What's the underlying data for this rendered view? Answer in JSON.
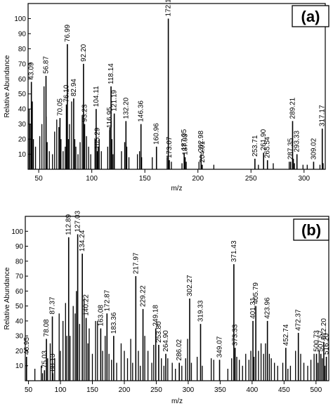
{
  "chart_data": [
    {
      "type": "bar",
      "panel_label": "(a)",
      "xlabel": "m/z",
      "ylabel": "Relative Abundance",
      "xlim": [
        40,
        320
      ],
      "ylim": [
        0,
        110
      ],
      "xticks": [
        "50",
        "100",
        "150",
        "200",
        "250",
        "300"
      ],
      "yticks": [
        "10",
        "20",
        "30",
        "40",
        "50",
        "60",
        "70",
        "80",
        "90",
        "100"
      ],
      "peaks": [
        {
          "x": 43.09,
          "y": 58,
          "label": "43.09"
        },
        {
          "x": 56.87,
          "y": 62,
          "label": "56.87"
        },
        {
          "x": 70.05,
          "y": 34,
          "label": "70.05"
        },
        {
          "x": 76.1,
          "y": 43,
          "label": "76.10"
        },
        {
          "x": 76.99,
          "y": 83,
          "label": "76.99"
        },
        {
          "x": 82.94,
          "y": 47,
          "label": "82.94"
        },
        {
          "x": 92.2,
          "y": 70,
          "label": "92.20"
        },
        {
          "x": 93.23,
          "y": 30,
          "label": "93.23"
        },
        {
          "x": 104.11,
          "y": 40,
          "label": "104.11"
        },
        {
          "x": 105.29,
          "y": 12,
          "label": "105.29"
        },
        {
          "x": 116.95,
          "y": 26,
          "label": "116.95"
        },
        {
          "x": 118.14,
          "y": 55,
          "label": "118.14"
        },
        {
          "x": 121.19,
          "y": 37,
          "label": "121.19"
        },
        {
          "x": 132.2,
          "y": 32,
          "label": "132.20"
        },
        {
          "x": 146.36,
          "y": 30,
          "label": "146.36"
        },
        {
          "x": 160.96,
          "y": 15,
          "label": "160.96"
        },
        {
          "x": 172.12,
          "y": 100,
          "label": "172.12"
        },
        {
          "x": 173.07,
          "y": 6,
          "label": "173.07"
        },
        {
          "x": 187.05,
          "y": 11,
          "label": "187.05"
        },
        {
          "x": 187.93,
          "y": 8,
          "label": "187.93"
        },
        {
          "x": 202.98,
          "y": 10,
          "label": "202.98"
        },
        {
          "x": 204.01,
          "y": 3,
          "label": "204.01"
        },
        {
          "x": 253.71,
          "y": 7,
          "label": "253.71"
        },
        {
          "x": 261.9,
          "y": 11,
          "label": "261.90"
        },
        {
          "x": 265.54,
          "y": 6,
          "label": "265.54"
        },
        {
          "x": 287.35,
          "y": 5,
          "label": "287.35"
        },
        {
          "x": 289.21,
          "y": 32,
          "label": "289.21"
        },
        {
          "x": 293.33,
          "y": 10,
          "label": "293.33"
        },
        {
          "x": 309.02,
          "y": 5,
          "label": "309.02"
        },
        {
          "x": 317.17,
          "y": 27,
          "label": "317.17"
        }
      ],
      "minor_peaks": [
        {
          "x": 41,
          "y": 40
        },
        {
          "x": 42,
          "y": 30
        },
        {
          "x": 44,
          "y": 45
        },
        {
          "x": 45,
          "y": 20
        },
        {
          "x": 47,
          "y": 15
        },
        {
          "x": 51,
          "y": 22
        },
        {
          "x": 53,
          "y": 30
        },
        {
          "x": 55,
          "y": 55
        },
        {
          "x": 57,
          "y": 35
        },
        {
          "x": 58,
          "y": 18
        },
        {
          "x": 60,
          "y": 12
        },
        {
          "x": 63,
          "y": 10
        },
        {
          "x": 65,
          "y": 25
        },
        {
          "x": 67,
          "y": 33
        },
        {
          "x": 69,
          "y": 28
        },
        {
          "x": 71,
          "y": 20
        },
        {
          "x": 73,
          "y": 12
        },
        {
          "x": 75,
          "y": 15
        },
        {
          "x": 78,
          "y": 20
        },
        {
          "x": 79,
          "y": 30
        },
        {
          "x": 81,
          "y": 45
        },
        {
          "x": 84,
          "y": 20
        },
        {
          "x": 85,
          "y": 15
        },
        {
          "x": 87,
          "y": 10
        },
        {
          "x": 89,
          "y": 18
        },
        {
          "x": 91,
          "y": 36
        },
        {
          "x": 95,
          "y": 22
        },
        {
          "x": 97,
          "y": 15
        },
        {
          "x": 99,
          "y": 10
        },
        {
          "x": 103,
          "y": 20
        },
        {
          "x": 106,
          "y": 15
        },
        {
          "x": 107,
          "y": 20
        },
        {
          "x": 109,
          "y": 12
        },
        {
          "x": 115,
          "y": 15
        },
        {
          "x": 117,
          "y": 28
        },
        {
          "x": 119,
          "y": 20
        },
        {
          "x": 120,
          "y": 10
        },
        {
          "x": 128,
          "y": 12
        },
        {
          "x": 131,
          "y": 18
        },
        {
          "x": 133,
          "y": 15
        },
        {
          "x": 135,
          "y": 8
        },
        {
          "x": 143,
          "y": 10
        },
        {
          "x": 145,
          "y": 12
        },
        {
          "x": 147,
          "y": 8
        },
        {
          "x": 157,
          "y": 8
        },
        {
          "x": 171,
          "y": 8
        },
        {
          "x": 175,
          "y": 5
        },
        {
          "x": 185,
          "y": 4
        },
        {
          "x": 189,
          "y": 5
        },
        {
          "x": 201,
          "y": 5
        },
        {
          "x": 215,
          "y": 3
        },
        {
          "x": 257,
          "y": 3
        },
        {
          "x": 271,
          "y": 4
        },
        {
          "x": 286,
          "y": 5
        },
        {
          "x": 290,
          "y": 7
        },
        {
          "x": 291,
          "y": 4
        },
        {
          "x": 299,
          "y": 3
        },
        {
          "x": 303,
          "y": 3
        },
        {
          "x": 315,
          "y": 3
        },
        {
          "x": 318,
          "y": 4
        }
      ]
    },
    {
      "type": "bar",
      "panel_label": "(b)",
      "xlabel": "m/z",
      "ylabel": "Relative Abundance",
      "xlim": [
        45,
        520
      ],
      "ylim": [
        0,
        110
      ],
      "xticks": [
        "50",
        "100",
        "150",
        "200",
        "250",
        "300",
        "350",
        "400",
        "450",
        "500"
      ],
      "yticks": [
        "10",
        "20",
        "30",
        "40",
        "50",
        "60",
        "70",
        "80",
        "90",
        "100"
      ],
      "peaks": [
        {
          "x": 46.95,
          "y": 16,
          "label": "46.95"
        },
        {
          "x": 75.03,
          "y": 7,
          "label": "75.03"
        },
        {
          "x": 78.08,
          "y": 28,
          "label": "78.08"
        },
        {
          "x": 87.37,
          "y": 43,
          "label": "87.37"
        },
        {
          "x": 88.13,
          "y": 5,
          "label": "88.13"
        },
        {
          "x": 112.89,
          "y": 96,
          "label": "112.89"
        },
        {
          "x": 127.03,
          "y": 98,
          "label": "127.03"
        },
        {
          "x": 134.24,
          "y": 85,
          "label": "134.24"
        },
        {
          "x": 140.22,
          "y": 42,
          "label": "140.22"
        },
        {
          "x": 163.08,
          "y": 35,
          "label": "163.08"
        },
        {
          "x": 172.87,
          "y": 45,
          "label": "172.87"
        },
        {
          "x": 183.36,
          "y": 30,
          "label": "183.36"
        },
        {
          "x": 217.97,
          "y": 70,
          "label": "217.97"
        },
        {
          "x": 229.22,
          "y": 48,
          "label": "229.22"
        },
        {
          "x": 249.18,
          "y": 35,
          "label": "249.18"
        },
        {
          "x": 253.8,
          "y": 24,
          "label": "253.80"
        },
        {
          "x": 264.9,
          "y": 18,
          "label": "264.90"
        },
        {
          "x": 286.02,
          "y": 12,
          "label": "286.02"
        },
        {
          "x": 302.27,
          "y": 55,
          "label": "302.27"
        },
        {
          "x": 319.33,
          "y": 38,
          "label": "319.33"
        },
        {
          "x": 349.07,
          "y": 14,
          "label": "349.07"
        },
        {
          "x": 371.43,
          "y": 78,
          "label": "371.43"
        },
        {
          "x": 373.33,
          "y": 22,
          "label": "373.33"
        },
        {
          "x": 401.31,
          "y": 40,
          "label": "401.31"
        },
        {
          "x": 405.79,
          "y": 50,
          "label": "405.79"
        },
        {
          "x": 423.96,
          "y": 40,
          "label": "423.96"
        },
        {
          "x": 452.74,
          "y": 22,
          "label": "452.74"
        },
        {
          "x": 472.37,
          "y": 32,
          "label": "472.37"
        },
        {
          "x": 500.73,
          "y": 18,
          "label": "500.73"
        },
        {
          "x": 507.57,
          "y": 18,
          "label": "507.57"
        },
        {
          "x": 512.2,
          "y": 26,
          "label": "512.20"
        },
        {
          "x": 516.2,
          "y": 16,
          "label": "516.20"
        }
      ],
      "minor_peaks": [
        {
          "x": 60,
          "y": 8
        },
        {
          "x": 70,
          "y": 10
        },
        {
          "x": 72,
          "y": 5
        },
        {
          "x": 80,
          "y": 15
        },
        {
          "x": 84,
          "y": 25
        },
        {
          "x": 91,
          "y": 15
        },
        {
          "x": 98,
          "y": 45
        },
        {
          "x": 100,
          "y": 20
        },
        {
          "x": 104,
          "y": 40
        },
        {
          "x": 108,
          "y": 52
        },
        {
          "x": 110,
          "y": 30
        },
        {
          "x": 115,
          "y": 30
        },
        {
          "x": 120,
          "y": 50
        },
        {
          "x": 123,
          "y": 45
        },
        {
          "x": 125,
          "y": 60
        },
        {
          "x": 130,
          "y": 38
        },
        {
          "x": 137,
          "y": 55
        },
        {
          "x": 143,
          "y": 25
        },
        {
          "x": 145,
          "y": 35
        },
        {
          "x": 150,
          "y": 18
        },
        {
          "x": 155,
          "y": 40
        },
        {
          "x": 158,
          "y": 40
        },
        {
          "x": 166,
          "y": 20
        },
        {
          "x": 170,
          "y": 30
        },
        {
          "x": 176,
          "y": 18
        },
        {
          "x": 180,
          "y": 14
        },
        {
          "x": 188,
          "y": 12
        },
        {
          "x": 195,
          "y": 25
        },
        {
          "x": 200,
          "y": 20
        },
        {
          "x": 205,
          "y": 15
        },
        {
          "x": 210,
          "y": 28
        },
        {
          "x": 213,
          "y": 12
        },
        {
          "x": 222,
          "y": 20
        },
        {
          "x": 225,
          "y": 10
        },
        {
          "x": 232,
          "y": 30
        },
        {
          "x": 237,
          "y": 20
        },
        {
          "x": 243,
          "y": 12
        },
        {
          "x": 246,
          "y": 24
        },
        {
          "x": 258,
          "y": 15
        },
        {
          "x": 262,
          "y": 10
        },
        {
          "x": 268,
          "y": 15
        },
        {
          "x": 275,
          "y": 12
        },
        {
          "x": 280,
          "y": 8
        },
        {
          "x": 290,
          "y": 10
        },
        {
          "x": 296,
          "y": 15
        },
        {
          "x": 299,
          "y": 28
        },
        {
          "x": 305,
          "y": 12
        },
        {
          "x": 314,
          "y": 16
        },
        {
          "x": 322,
          "y": 10
        },
        {
          "x": 336,
          "y": 15
        },
        {
          "x": 340,
          "y": 14
        },
        {
          "x": 362,
          "y": 8
        },
        {
          "x": 368,
          "y": 15
        },
        {
          "x": 376,
          "y": 16
        },
        {
          "x": 380,
          "y": 14
        },
        {
          "x": 385,
          "y": 10
        },
        {
          "x": 390,
          "y": 18
        },
        {
          "x": 395,
          "y": 14
        },
        {
          "x": 398,
          "y": 20
        },
        {
          "x": 403,
          "y": 16
        },
        {
          "x": 410,
          "y": 20
        },
        {
          "x": 414,
          "y": 25
        },
        {
          "x": 418,
          "y": 18
        },
        {
          "x": 421,
          "y": 25
        },
        {
          "x": 427,
          "y": 18
        },
        {
          "x": 430,
          "y": 15
        },
        {
          "x": 435,
          "y": 12
        },
        {
          "x": 440,
          "y": 10
        },
        {
          "x": 448,
          "y": 12
        },
        {
          "x": 456,
          "y": 8
        },
        {
          "x": 460,
          "y": 10
        },
        {
          "x": 468,
          "y": 20
        },
        {
          "x": 476,
          "y": 18
        },
        {
          "x": 481,
          "y": 12
        },
        {
          "x": 487,
          "y": 10
        },
        {
          "x": 492,
          "y": 14
        },
        {
          "x": 497,
          "y": 18
        },
        {
          "x": 503,
          "y": 12
        },
        {
          "x": 505,
          "y": 20
        },
        {
          "x": 510,
          "y": 15
        },
        {
          "x": 514,
          "y": 10
        }
      ]
    }
  ]
}
